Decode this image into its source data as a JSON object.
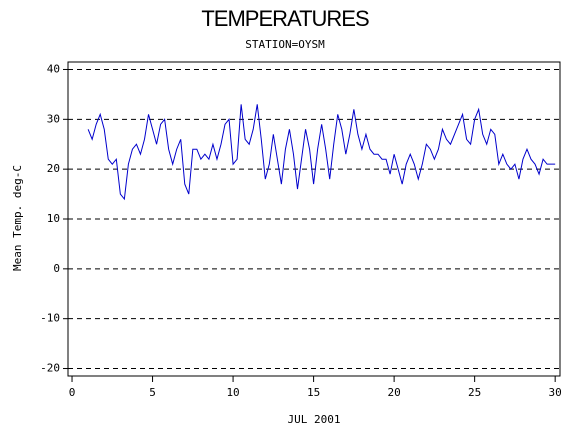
{
  "chart_data": {
    "type": "line",
    "title": "TEMPERATURES",
    "subtitle": "STATION=OYSM",
    "x_label": "JUL 2001",
    "y_label": "Mean Temp. deg-C",
    "xlim": [
      -0.25,
      30.3
    ],
    "ylim": [
      -21.5,
      41.5
    ],
    "xticks": [
      0,
      5,
      10,
      15,
      20,
      25,
      30
    ],
    "yticks": [
      -20,
      -10,
      0,
      10,
      20,
      30,
      40
    ],
    "grid": true,
    "x": [
      1,
      1.25,
      1.5,
      1.75,
      2,
      2.25,
      2.5,
      2.75,
      3,
      3.25,
      3.5,
      3.75,
      4,
      4.25,
      4.5,
      4.75,
      5,
      5.25,
      5.5,
      5.75,
      6,
      6.25,
      6.5,
      6.75,
      7,
      7.25,
      7.5,
      7.75,
      8,
      8.25,
      8.5,
      8.75,
      9,
      9.25,
      9.5,
      9.75,
      10,
      10.25,
      10.5,
      10.75,
      11,
      11.25,
      11.5,
      11.75,
      12,
      12.25,
      12.5,
      12.75,
      13,
      13.25,
      13.5,
      13.75,
      14,
      14.25,
      14.5,
      14.75,
      15,
      15.25,
      15.5,
      15.75,
      16,
      16.25,
      16.5,
      16.75,
      17,
      17.25,
      17.5,
      17.75,
      18,
      18.25,
      18.5,
      18.75,
      19,
      19.25,
      19.5,
      19.75,
      20,
      20.25,
      20.5,
      20.75,
      21,
      21.25,
      21.5,
      21.75,
      22,
      22.25,
      22.5,
      22.75,
      23,
      23.25,
      23.5,
      23.75,
      24,
      24.25,
      24.5,
      24.75,
      25,
      25.25,
      25.5,
      25.75,
      26,
      26.25,
      26.5,
      26.75,
      27,
      27.25,
      27.5,
      27.75,
      28,
      28.25,
      28.5,
      28.75,
      29,
      29.25,
      29.5,
      29.75,
      30
    ],
    "series": [
      {
        "name": "Mean Temp",
        "color": "#0000cc",
        "values": [
          28,
          26,
          29,
          31,
          28,
          22,
          21,
          22,
          15,
          14,
          21,
          24,
          25,
          23,
          26,
          31,
          28,
          25,
          29,
          30,
          24,
          21,
          24,
          26,
          17,
          15,
          24,
          24,
          22,
          23,
          22,
          25,
          22,
          25,
          29,
          30,
          21,
          22,
          33,
          26,
          25,
          28,
          33,
          26,
          18,
          21,
          27,
          22,
          17,
          24,
          28,
          23,
          16,
          22,
          28,
          24,
          17,
          24,
          29,
          24,
          18,
          25,
          31,
          28,
          23,
          27,
          32,
          27,
          24,
          27,
          24,
          23,
          23,
          22,
          22,
          19,
          23,
          20,
          17,
          21,
          23,
          21,
          18,
          21,
          25,
          24,
          22,
          24,
          28,
          26,
          25,
          27,
          29,
          31,
          26,
          25,
          30,
          32,
          27,
          25,
          28,
          27,
          21,
          23,
          21,
          20,
          21,
          18,
          22,
          24,
          22,
          21,
          19,
          22,
          21,
          21,
          21
        ]
      }
    ]
  }
}
